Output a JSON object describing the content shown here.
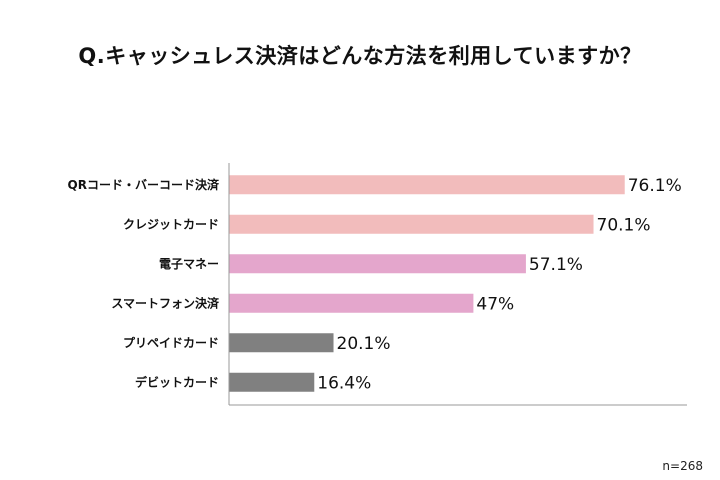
{
  "chart_data": {
    "type": "bar",
    "orientation": "horizontal",
    "title": "Q.キャッシュレス決済はどんな方法を利用していますか？",
    "categories": [
      "QRコード・バーコード決済",
      "クレジットカード",
      "電子マネー",
      "スマートフォン決済",
      "プリペイドカード",
      "デビットカード"
    ],
    "values": [
      76.1,
      70.1,
      57.1,
      47,
      20.1,
      16.4
    ],
    "value_labels": [
      "76.1%",
      "70.1%",
      "57.1%",
      "47%",
      "20.1%",
      "16.4%"
    ],
    "bar_colors": [
      "#f2bcbc",
      "#f2bcbc",
      "#e4a6cc",
      "#e4a6cc",
      "#808080",
      "#808080"
    ],
    "unit": "%",
    "xlim": [
      0,
      100
    ],
    "grid": false,
    "legend": "none"
  },
  "note": "n=268"
}
